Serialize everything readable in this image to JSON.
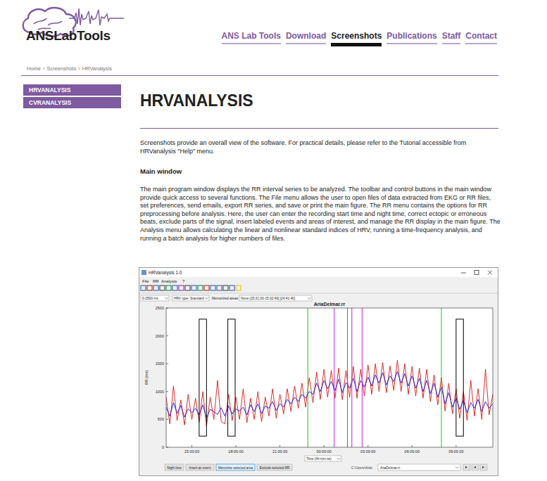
{
  "header": {
    "logo": "ANSLabTools",
    "nav": [
      "ANS Lab Tools",
      "Download",
      "Screenshots",
      "Publications",
      "Staff",
      "Contact"
    ],
    "active_index": 2
  },
  "breadcrumb": {
    "items": [
      "Home",
      "Screenshots",
      "HRVanalysis"
    ],
    "separator": "›"
  },
  "sidebar": [
    "HRVANALYSIS",
    "CVRANALYSIS"
  ],
  "page": {
    "title": "HRVANALYSIS",
    "intro": "Screenshots provide an overall view of the software. For practical details, please refer to the Tutorial accessible from HRVanalysis \"Help\" menu.",
    "section": "Main window",
    "body": "The main program window displays the RR interval series to be analyzed. The toolbar and control buttons in the main window provide quick access to several functions. The File menu allows the user to open files of data extracted from EKG or RR files, set preferences, send emails, export RR series, and save or print the main figure. The RR menu contains the options for RR preprocessing before analysis. Here, the user can enter the recording start time and night time, correct ectopic or erroneous beats, exclude parts of the signal, insert labeled events and areas of interest, and manage the RR display in the main figure. The Analysis menu allows calculating the linear and nonlinear standard indices of HRV, running a time-frequency analysis, and running a batch analysis for higher numbers of files."
  },
  "app": {
    "window_title": "HRVanalysis 1.0",
    "menu": [
      "File",
      "RR",
      "Analysis",
      "?"
    ],
    "controls": [
      "0-2500 ms",
      "HRV type: Standard"
    ],
    "memorized_label": "Memorized areas",
    "memorized_value": "None [15:31:00-15:32:40] [24:41:40]",
    "buttons": [
      "Night time",
      "Insert an event",
      "Memorize selected area",
      "Exclude selected RR"
    ],
    "file_path": "C:\\Users\\Aria\\",
    "file_name": "AriaDelmar.rr"
  },
  "chart_data": {
    "type": "line",
    "title": "AriaDelmar.rr",
    "x_label": "Time (hh:mm:ss)",
    "y_label": "RR (ms)",
    "xlim": [
      13.25,
      35.5
    ],
    "xticks": [
      {
        "value": 15,
        "label": "15:00:00"
      },
      {
        "value": 18,
        "label": "18:00:00"
      },
      {
        "value": 21,
        "label": "21:00:00"
      },
      {
        "value": 24,
        "label": "00:00:00"
      },
      {
        "value": 27,
        "label": "03:00:00"
      },
      {
        "value": 30,
        "label": "06:00:00"
      },
      {
        "value": 33,
        "label": "09:00:00"
      }
    ],
    "ylim": [
      0,
      2500
    ],
    "yticks": [
      0,
      500,
      1000,
      1500,
      2000,
      2500
    ],
    "grid": false,
    "x": [
      13.25,
      13.5,
      13.75,
      14,
      14.25,
      14.5,
      14.75,
      15,
      15.25,
      15.5,
      15.75,
      16,
      16.25,
      16.5,
      16.75,
      17,
      17.25,
      17.5,
      17.75,
      18,
      18.25,
      18.5,
      18.75,
      19,
      19.25,
      19.5,
      19.75,
      20,
      20.25,
      20.5,
      20.75,
      21,
      21.25,
      21.5,
      21.75,
      22,
      22.25,
      22.5,
      22.75,
      23,
      23.25,
      23.5,
      23.75,
      24,
      24.25,
      24.5,
      24.75,
      25,
      25.25,
      25.5,
      25.75,
      26,
      26.25,
      26.5,
      26.75,
      27,
      27.25,
      27.5,
      27.75,
      28,
      28.25,
      28.5,
      28.75,
      29,
      29.25,
      29.5,
      29.75,
      30,
      30.25,
      30.5,
      30.75,
      31,
      31.25,
      31.5,
      31.75,
      32,
      32.25,
      32.5,
      32.75,
      33,
      33.25,
      33.5,
      33.75,
      34,
      34.25,
      34.5,
      34.75,
      35,
      35.25,
      35.5
    ],
    "series": [
      {
        "color": "#d81818",
        "values": [
          900,
          420,
          1100,
          480,
          850,
          400,
          950,
          500,
          880,
          450,
          1000,
          380,
          900,
          500,
          1200,
          460,
          420,
          950,
          480,
          900,
          500,
          1050,
          440,
          880,
          500,
          1000,
          460,
          900,
          560,
          1050,
          520,
          950,
          600,
          1050,
          640,
          1100,
          700,
          1150,
          720,
          1250,
          800,
          1350,
          860,
          1400,
          900,
          1380,
          880,
          1420,
          850,
          1380,
          900,
          1450,
          880,
          1400,
          920,
          1480,
          950,
          1500,
          1000,
          1520,
          980,
          1460,
          1020,
          1560,
          1000,
          1500,
          950,
          1450,
          920,
          1420,
          880,
          1400,
          820,
          1300,
          760,
          1250,
          650,
          1150,
          600,
          1050,
          520,
          1000,
          480,
          1200,
          560,
          1050,
          500,
          1400,
          580,
          950
        ]
      },
      {
        "color": "#1414e6",
        "values": [
          720,
          560,
          800,
          610,
          750,
          540,
          690,
          620,
          700,
          580,
          760,
          520,
          680,
          640,
          590,
          710,
          560,
          740,
          600,
          690,
          650,
          720,
          580,
          760,
          640,
          780,
          600,
          740,
          700,
          820,
          660,
          780,
          720,
          860,
          780,
          900,
          820,
          950,
          880,
          1000,
          950,
          1150,
          1000,
          1200,
          1050,
          1180,
          1020,
          1220,
          980,
          1160,
          1060,
          1240,
          1000,
          1200,
          1080,
          1260,
          1100,
          1300,
          1150,
          1340,
          1120,
          1280,
          1180,
          1360,
          1150,
          1320,
          1100,
          1280,
          1060,
          1240,
          1000,
          1200,
          960,
          1150,
          900,
          1080,
          780,
          980,
          720,
          880,
          680,
          840,
          620,
          800,
          700,
          860,
          640,
          820,
          700,
          780
        ]
      }
    ],
    "night_time": [
      22.9,
      32.0
    ],
    "events": [
      24.7,
      25.6,
      25.9,
      26.6
    ],
    "excluded_areas": [
      {
        "start": 15.5,
        "end": 16.0,
        "low": 200,
        "high": 2300
      },
      {
        "start": 17.45,
        "end": 17.95,
        "low": 200,
        "high": 2300
      },
      {
        "start": 33.0,
        "end": 33.5,
        "low": 200,
        "high": 2300
      }
    ]
  }
}
